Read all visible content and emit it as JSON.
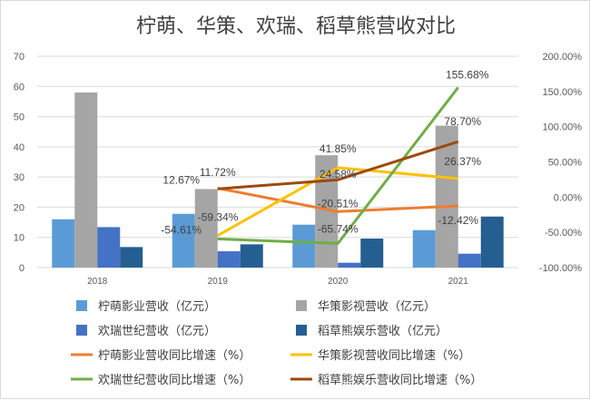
{
  "chart_data": {
    "type": "bar",
    "title": "柠萌、华策、欢瑞、稻草熊营收对比",
    "categories": [
      "2018",
      "2019",
      "2020",
      "2021"
    ],
    "y_left": {
      "range": [
        0,
        70
      ],
      "ticks": [
        "0",
        "10",
        "20",
        "30",
        "40",
        "50",
        "60",
        "70"
      ]
    },
    "y_right": {
      "range": [
        -100,
        200
      ],
      "ticks": [
        "-100.00%",
        "-50.00%",
        "0.00%",
        "50.00%",
        "100.00%",
        "150.00%",
        "200.00%"
      ]
    },
    "gridlines": true,
    "legend_position": "bottom",
    "bar_series": [
      {
        "name": "柠萌影业营收（亿元）",
        "color": "#5b9bd5",
        "values": [
          16.0,
          17.8,
          14.2,
          12.4
        ]
      },
      {
        "name": "华策影视营收（亿元）",
        "color": "#a5a5a5",
        "values": [
          58.0,
          26.0,
          37.2,
          47.0
        ]
      },
      {
        "name": "欢瑞世纪营收（亿元）",
        "color": "#4472c4",
        "values": [
          13.4,
          5.4,
          1.6,
          4.6
        ]
      },
      {
        "name": "稻草熊娱乐营收（亿元）",
        "color": "#255e91",
        "values": [
          6.8,
          7.7,
          9.6,
          16.9
        ]
      }
    ],
    "line_series": [
      {
        "name": "柠萌影业营收同比增速（%）",
        "color": "#ed7d31",
        "values": [
          null,
          12.67,
          -20.51,
          -12.42
        ],
        "labels": [
          "",
          "12.67%",
          "-20.51%",
          "-12.42%"
        ]
      },
      {
        "name": "华策影视营收同比增速（%）",
        "color": "#ffc000",
        "values": [
          null,
          -54.61,
          41.85,
          26.37
        ],
        "labels": [
          "",
          "-54.61%",
          "41.85%",
          "26.37%"
        ]
      },
      {
        "name": "欢瑞世纪营收同比增速（%）",
        "color": "#70ad47",
        "values": [
          null,
          -59.34,
          -65.74,
          155.68
        ],
        "labels": [
          "",
          "-59.34%",
          "-65.74%",
          "155.68%"
        ]
      },
      {
        "name": "稻草熊娱乐营收同比增速（%）",
        "color": "#9e480e",
        "values": [
          null,
          11.72,
          24.58,
          78.7
        ],
        "labels": [
          "",
          "11.72%",
          "24.58%",
          "78.70%"
        ]
      }
    ]
  }
}
